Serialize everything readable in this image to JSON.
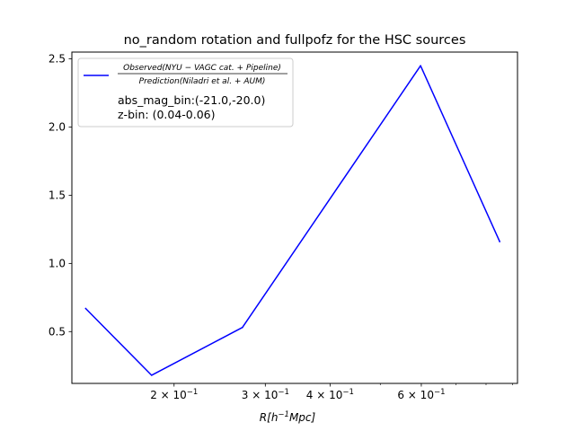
{
  "chart_data": {
    "type": "line",
    "title": "no_random rotation and fullpofz for the HSC sources",
    "xscale": "log",
    "xlim": [
      0.127,
      0.92
    ],
    "ylim": [
      0.12,
      2.55
    ],
    "grid": false,
    "legend_placement": "upper left",
    "xlabel": {
      "base": "R[h",
      "sup": "−1",
      "rest": "Mpc]"
    },
    "yticks": [
      {
        "value": 0.5,
        "label": "0.5"
      },
      {
        "value": 1.0,
        "label": "1.0"
      },
      {
        "value": 1.5,
        "label": "1.5"
      },
      {
        "value": 2.0,
        "label": "2.0"
      },
      {
        "value": 2.5,
        "label": "2.5"
      }
    ],
    "xticks_major": [
      {
        "value": 0.2,
        "base": "2 × 10",
        "exp": "−1"
      },
      {
        "value": 0.3,
        "base": "3 × 10",
        "exp": "−1"
      },
      {
        "value": 0.4,
        "base": "4 × 10",
        "exp": "−1"
      },
      {
        "value": 0.6,
        "base": "6 × 10",
        "exp": "−1"
      }
    ],
    "xticks_minor": [
      0.5,
      0.7,
      0.8,
      0.9
    ],
    "series": [
      {
        "color": "#0000ff",
        "x": [
          0.135,
          0.181,
          0.271,
          0.598,
          0.85
        ],
        "y": [
          0.67,
          0.18,
          0.53,
          2.45,
          1.16
        ]
      }
    ],
    "legend": {
      "numerator": "Observed(NYU − VAGC cat. + Pipeline)",
      "denominator": "Prediction(Niladri et al. + AUM)",
      "line1": "abs_mag_bin:(-21.0,-20.0)",
      "line2": "z-bin: (0.04-0.06)"
    }
  }
}
